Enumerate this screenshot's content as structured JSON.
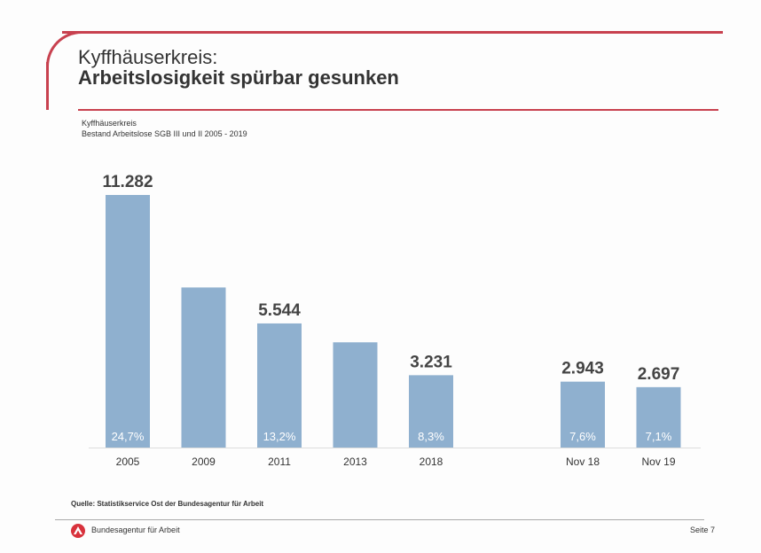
{
  "header": {
    "title_line1": "Kyffhäuserkreis:",
    "title_line2": "Arbeitslosigkeit spürbar gesunken"
  },
  "chart_data": {
    "type": "bar",
    "title": "Kyffhäuserkreis",
    "subtitle": "Bestand Arbeitslose SGB III und II 2005 - 2019",
    "categories": [
      "2005",
      "2009",
      "2011",
      "2013",
      "2018",
      "Nov 18",
      "Nov 19"
    ],
    "values": [
      11282,
      7150,
      5544,
      4700,
      3231,
      2943,
      2697
    ],
    "value_labels": [
      "11.282",
      "",
      "5.544",
      "",
      "3.231",
      "2.943",
      "2.697"
    ],
    "rate_labels": [
      "24,7%",
      "",
      "13,2%",
      "",
      "8,3%",
      "7,6%",
      "7,1%"
    ],
    "ylim": [
      0,
      12000
    ],
    "grid": false,
    "bar_color": "#8fb0cf"
  },
  "footer": {
    "source": "Quelle: Statistikservice Ost der Bundesagentur für Arbeit",
    "brand": "Bundesagentur für Arbeit",
    "page": "Seite 7"
  },
  "colors": {
    "accent": "#c8414f"
  }
}
